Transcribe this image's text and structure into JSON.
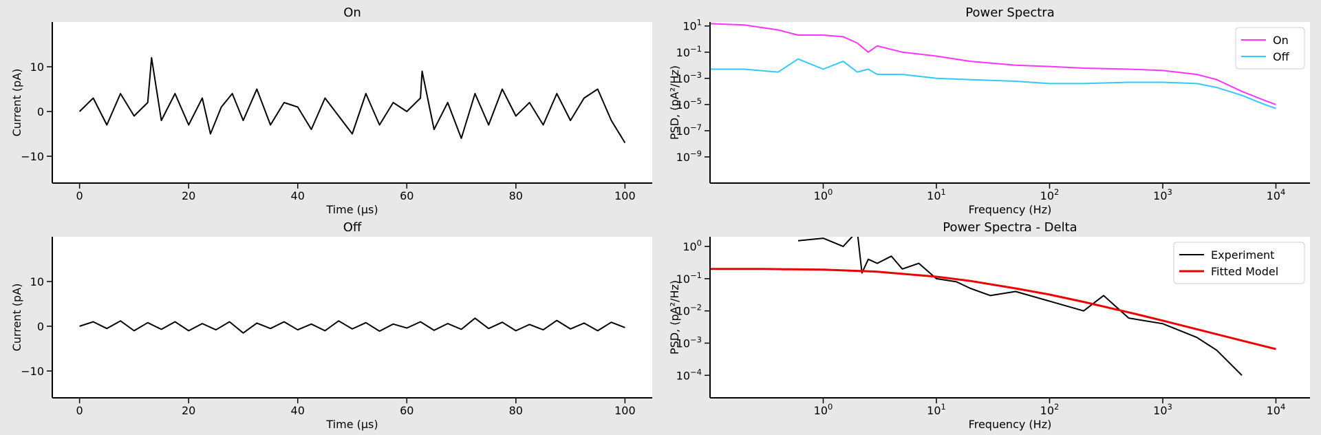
{
  "chart_data": [
    {
      "type": "line",
      "title": "On",
      "xlabel": "Time (µs)",
      "ylabel": "Current (pA)",
      "xlim": [
        -5,
        105
      ],
      "ylim": [
        -16,
        20
      ],
      "xticks": [
        0,
        20,
        40,
        60,
        80,
        100
      ],
      "xtick_labels": [
        "0",
        "20",
        "40",
        "60",
        "80",
        "100"
      ],
      "yticks": [
        -10,
        0,
        10
      ],
      "ytick_labels": [
        "−10",
        "0",
        "10"
      ],
      "series": [
        {
          "color": "#000000",
          "x": [
            0,
            2.5,
            5,
            7.5,
            10,
            12.5,
            13.2,
            15,
            17.5,
            20,
            22.5,
            24,
            26,
            28,
            30,
            32.5,
            35,
            37.5,
            40,
            42.5,
            45,
            47.5,
            50,
            52.5,
            55,
            57.5,
            60,
            62.5,
            62.8,
            65,
            67.5,
            70,
            72.5,
            75,
            77.5,
            80,
            82.5,
            85,
            87.5,
            90,
            92.5,
            95,
            97.5,
            100
          ],
          "y": [
            0,
            3,
            -3,
            4,
            -1,
            2,
            12,
            -2,
            4,
            -3,
            3,
            -5,
            1,
            4,
            -2,
            5,
            -3,
            2,
            1,
            -4,
            3,
            -1,
            -5,
            4,
            -3,
            2,
            0,
            3,
            9,
            -4,
            2,
            -6,
            4,
            -3,
            5,
            -1,
            2,
            -3,
            4,
            -2,
            3,
            5,
            -2,
            -7
          ]
        }
      ]
    },
    {
      "type": "line",
      "title": "Power Spectra",
      "xlabel": "Frequency (Hz)",
      "ylabel": "PSD, (pA²/Hz)",
      "xscale": "log",
      "yscale": "log",
      "xlim": [
        0.1,
        20000
      ],
      "ylim": [
        1e-11,
        20
      ],
      "xticks": [
        1,
        10,
        100,
        1000,
        10000
      ],
      "xtick_labels": [
        {
          "b": "10",
          "e": "0"
        },
        {
          "b": "10",
          "e": "1"
        },
        {
          "b": "10",
          "e": "2"
        },
        {
          "b": "10",
          "e": "3"
        },
        {
          "b": "10",
          "e": "4"
        }
      ],
      "yticks": [
        1e-09,
        1e-07,
        1e-05,
        0.001,
        0.1,
        10
      ],
      "ytick_labels": [
        {
          "b": "10",
          "e": "−9"
        },
        {
          "b": "10",
          "e": "−7"
        },
        {
          "b": "10",
          "e": "−5"
        },
        {
          "b": "10",
          "e": "−3"
        },
        {
          "b": "10",
          "e": "−1"
        },
        {
          "b": "10",
          "e": "1"
        }
      ],
      "legend_position": "top-right",
      "series": [
        {
          "name": "On",
          "color": "#ff33ff",
          "x": [
            0.1,
            0.2,
            0.4,
            0.6,
            1,
            1.5,
            2,
            2.5,
            3,
            5,
            10,
            20,
            50,
            100,
            200,
            500,
            1000,
            2000,
            3000,
            5000,
            8000,
            10000
          ],
          "y": [
            15,
            12,
            5,
            2,
            2,
            1.5,
            0.5,
            0.1,
            0.3,
            0.1,
            0.05,
            0.02,
            0.01,
            0.008,
            0.006,
            0.005,
            0.004,
            0.002,
            0.0008,
            0.0001,
            2e-05,
            1e-05
          ]
        },
        {
          "name": "Off",
          "color": "#33c7ff",
          "x": [
            0.1,
            0.2,
            0.4,
            0.6,
            1,
            1.5,
            2,
            2.5,
            3,
            5,
            10,
            20,
            50,
            100,
            200,
            500,
            1000,
            2000,
            3000,
            5000,
            8000,
            10000
          ],
          "y": [
            0.005,
            0.005,
            0.003,
            0.03,
            0.005,
            0.02,
            0.003,
            0.005,
            0.002,
            0.002,
            0.001,
            0.0008,
            0.0006,
            0.0004,
            0.0004,
            0.0005,
            0.0005,
            0.0004,
            0.0002,
            5e-05,
            1e-05,
            5e-06
          ]
        }
      ]
    },
    {
      "type": "line",
      "title": "Off",
      "xlabel": "Time (µs)",
      "ylabel": "Current (pA)",
      "xlim": [
        -5,
        105
      ],
      "ylim": [
        -16,
        20
      ],
      "xticks": [
        0,
        20,
        40,
        60,
        80,
        100
      ],
      "xtick_labels": [
        "0",
        "20",
        "40",
        "60",
        "80",
        "100"
      ],
      "yticks": [
        -10,
        0,
        10
      ],
      "ytick_labels": [
        "−10",
        "0",
        "10"
      ],
      "series": [
        {
          "color": "#000000",
          "x": [
            0,
            2.5,
            5,
            7.5,
            10,
            12.5,
            15,
            17.5,
            20,
            22.5,
            25,
            27.5,
            30,
            32.5,
            35,
            37.5,
            40,
            42.5,
            45,
            47.5,
            50,
            52.5,
            55,
            57.5,
            60,
            62.5,
            65,
            67.5,
            70,
            72.5,
            75,
            77.5,
            80,
            82.5,
            85,
            87.5,
            90,
            92.5,
            95,
            97.5,
            100
          ],
          "y": [
            0,
            1,
            -0.5,
            1.2,
            -1,
            0.8,
            -0.7,
            1,
            -1,
            0.6,
            -0.8,
            1,
            -1.5,
            0.7,
            -0.5,
            1,
            -0.8,
            0.5,
            -1,
            1.2,
            -0.6,
            0.8,
            -1.1,
            0.5,
            -0.4,
            1,
            -0.9,
            0.6,
            -0.7,
            1.8,
            -0.5,
            0.9,
            -1,
            0.4,
            -0.8,
            1.3,
            -0.6,
            0.7,
            -1,
            0.9,
            -0.3
          ]
        }
      ]
    },
    {
      "type": "line",
      "title": "Power Spectra - Delta",
      "xlabel": "Frequency (Hz)",
      "ylabel": "PSD, (pA²/Hz)",
      "xscale": "log",
      "yscale": "log",
      "xlim": [
        0.1,
        20000
      ],
      "ylim": [
        2e-05,
        2
      ],
      "xticks": [
        1,
        10,
        100,
        1000,
        10000
      ],
      "xtick_labels": [
        {
          "b": "10",
          "e": "0"
        },
        {
          "b": "10",
          "e": "1"
        },
        {
          "b": "10",
          "e": "2"
        },
        {
          "b": "10",
          "e": "3"
        },
        {
          "b": "10",
          "e": "4"
        }
      ],
      "yticks": [
        0.0001,
        0.001,
        0.01,
        0.1,
        1
      ],
      "ytick_labels": [
        {
          "b": "10",
          "e": "−4"
        },
        {
          "b": "10",
          "e": "−3"
        },
        {
          "b": "10",
          "e": "−2"
        },
        {
          "b": "10",
          "e": "−1"
        },
        {
          "b": "10",
          "e": "0"
        }
      ],
      "legend_position": "top-right",
      "series": [
        {
          "name": "Experiment",
          "color": "#000000",
          "x": [
            0.6,
            1,
            1.5,
            2,
            2.2,
            2.5,
            3,
            4,
            5,
            7,
            10,
            15,
            20,
            30,
            50,
            100,
            200,
            300,
            500,
            1000,
            2000,
            3000,
            5000
          ],
          "y": [
            1.5,
            1.8,
            1,
            3,
            0.15,
            0.4,
            0.3,
            0.5,
            0.2,
            0.3,
            0.1,
            0.08,
            0.05,
            0.03,
            0.04,
            0.02,
            0.01,
            0.03,
            0.006,
            0.004,
            0.0015,
            0.0006,
            0.0001
          ]
        },
        {
          "name": "Fitted Model",
          "color": "#ee0000",
          "x": [
            0.1,
            0.3,
            1,
            3,
            10,
            20,
            50,
            100,
            200,
            500,
            1000,
            2000,
            5000,
            10000
          ],
          "y": [
            0.2,
            0.2,
            0.19,
            0.165,
            0.115,
            0.085,
            0.05,
            0.032,
            0.019,
            0.009,
            0.005,
            0.0027,
            0.0012,
            0.00065
          ]
        }
      ]
    }
  ]
}
